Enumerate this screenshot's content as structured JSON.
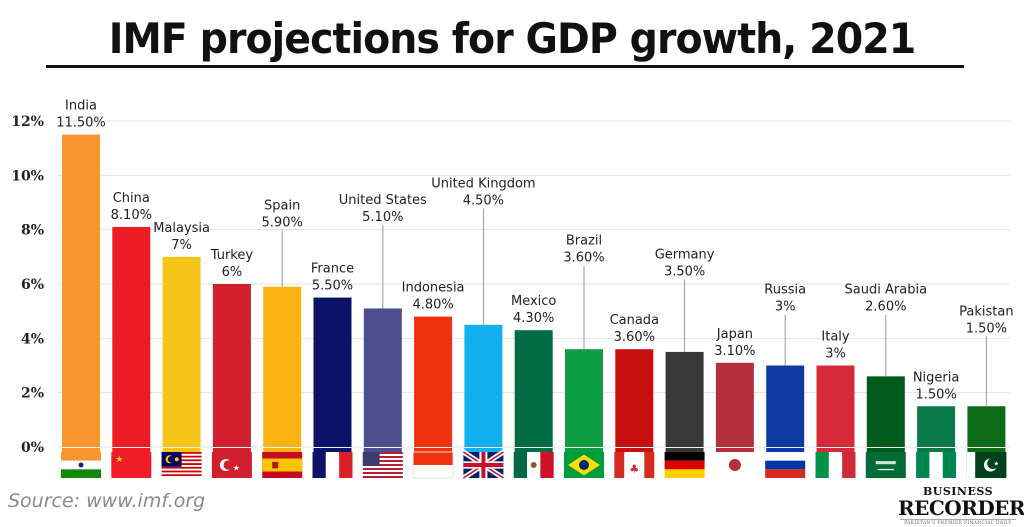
{
  "title": "IMF projections for GDP growth, 2021",
  "source": "Source: www.imf.org",
  "logo": {
    "line1": "BUSINESS",
    "line2": "RECORDER",
    "tagline": "PAKISTAN'S PREMIER FINANCIAL DAILY"
  },
  "chart_data": {
    "type": "bar",
    "title": "IMF projections for GDP growth, 2021",
    "xlabel": "",
    "ylabel": "",
    "ylim": [
      0,
      12
    ],
    "yticks": [
      0,
      2,
      4,
      6,
      8,
      10,
      12
    ],
    "ytick_labels": [
      "0%",
      "2%",
      "4%",
      "6%",
      "8%",
      "10%",
      "12%"
    ],
    "grid": true,
    "legend": "none",
    "categories": [
      "India",
      "China",
      "Malaysia",
      "Turkey",
      "Spain",
      "France",
      "United States",
      "Indonesia",
      "United Kingdom",
      "Mexico",
      "Brazil",
      "Canada",
      "Germany",
      "Japan",
      "Russia",
      "Italy",
      "Saudi Arabia",
      "Nigeria",
      "Pakistan"
    ],
    "values": [
      11.5,
      8.1,
      7,
      6,
      5.9,
      5.5,
      5.1,
      4.8,
      4.5,
      4.3,
      3.6,
      3.6,
      3.5,
      3.1,
      3,
      3,
      2.6,
      1.5,
      1.5
    ],
    "value_labels": [
      "11.50%",
      "8.10%",
      "7%",
      "6%",
      "5.90%",
      "5.50%",
      "5.10%",
      "4.80%",
      "4.50%",
      "4.30%",
      "3.60%",
      "3.60%",
      "3.50%",
      "3.10%",
      "3%",
      "3%",
      "2.60%",
      "1.50%",
      "1.50%"
    ],
    "colors": [
      "#f7962d",
      "#ed1c24",
      "#f5c518",
      "#d0202e",
      "#fbb413",
      "#0c1366",
      "#4c4e8e",
      "#f0310f",
      "#12b0ec",
      "#006b45",
      "#0f9d43",
      "#c70f0f",
      "#383838",
      "#b5303f",
      "#0f3aa3",
      "#d52a3a",
      "#005a19",
      "#0a7a49",
      "#0c6b17"
    ],
    "label_offsets": [
      0,
      0,
      0,
      0,
      2,
      0,
      3,
      0,
      4.2,
      0,
      3,
      0,
      2.6,
      0,
      1.8,
      0,
      2.2,
      0,
      2.5
    ],
    "flags": [
      "india-flag",
      "china-flag",
      "malaysia-flag",
      "turkey-flag",
      "spain-flag",
      "france-flag",
      "usa-flag",
      "indonesia-flag",
      "uk-flag",
      "mexico-flag",
      "brazil-flag",
      "canada-flag",
      "germany-flag",
      "japan-flag",
      "russia-flag",
      "italy-flag",
      "saudi-arabia-flag",
      "nigeria-flag",
      "pakistan-flag"
    ]
  }
}
